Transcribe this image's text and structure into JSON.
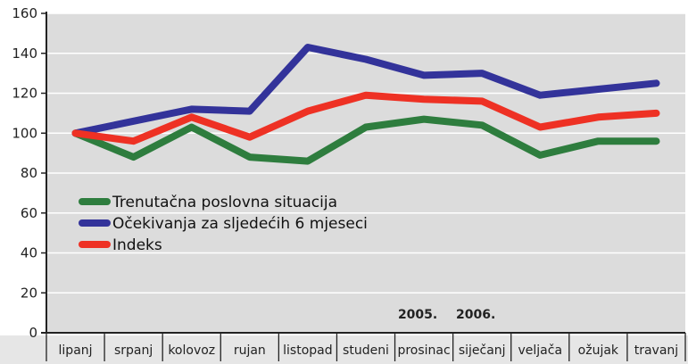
{
  "chart_data": {
    "type": "line",
    "title": "",
    "xlabel": "",
    "ylabel": "",
    "categories": [
      "lipanj",
      "srpanj",
      "kolovoz",
      "rujan",
      "listopad",
      "studeni",
      "prosinac",
      "siječanj",
      "veljača",
      "ožujak",
      "travanj"
    ],
    "ylim": [
      0,
      160
    ],
    "yticks": [
      0,
      20,
      40,
      60,
      80,
      100,
      120,
      140,
      160
    ],
    "ytick_labels": [
      "0",
      "20",
      "40",
      "60",
      "80",
      "100",
      "120",
      "140",
      "160"
    ],
    "grid": true,
    "legend_position": "lower-left",
    "series": [
      {
        "name": "Trenutačna poslovna situacija",
        "color": "#2e7d3e",
        "values": [
          100,
          88,
          103,
          88,
          86,
          103,
          107,
          104,
          89,
          96,
          96
        ]
      },
      {
        "name": "Očekivanja za sljedećih 6 mjeseci",
        "color": "#33339a",
        "values": [
          100,
          106,
          112,
          111,
          143,
          137,
          129,
          130,
          119,
          122,
          125
        ]
      },
      {
        "name": "Indeks",
        "color": "#ee3124",
        "values": [
          100,
          96,
          108,
          98,
          111,
          119,
          117,
          116,
          103,
          108,
          110
        ]
      }
    ],
    "annotations": [
      {
        "text": "2005.",
        "category_index": 6
      },
      {
        "text": "2006.",
        "category_index": 7
      }
    ]
  }
}
